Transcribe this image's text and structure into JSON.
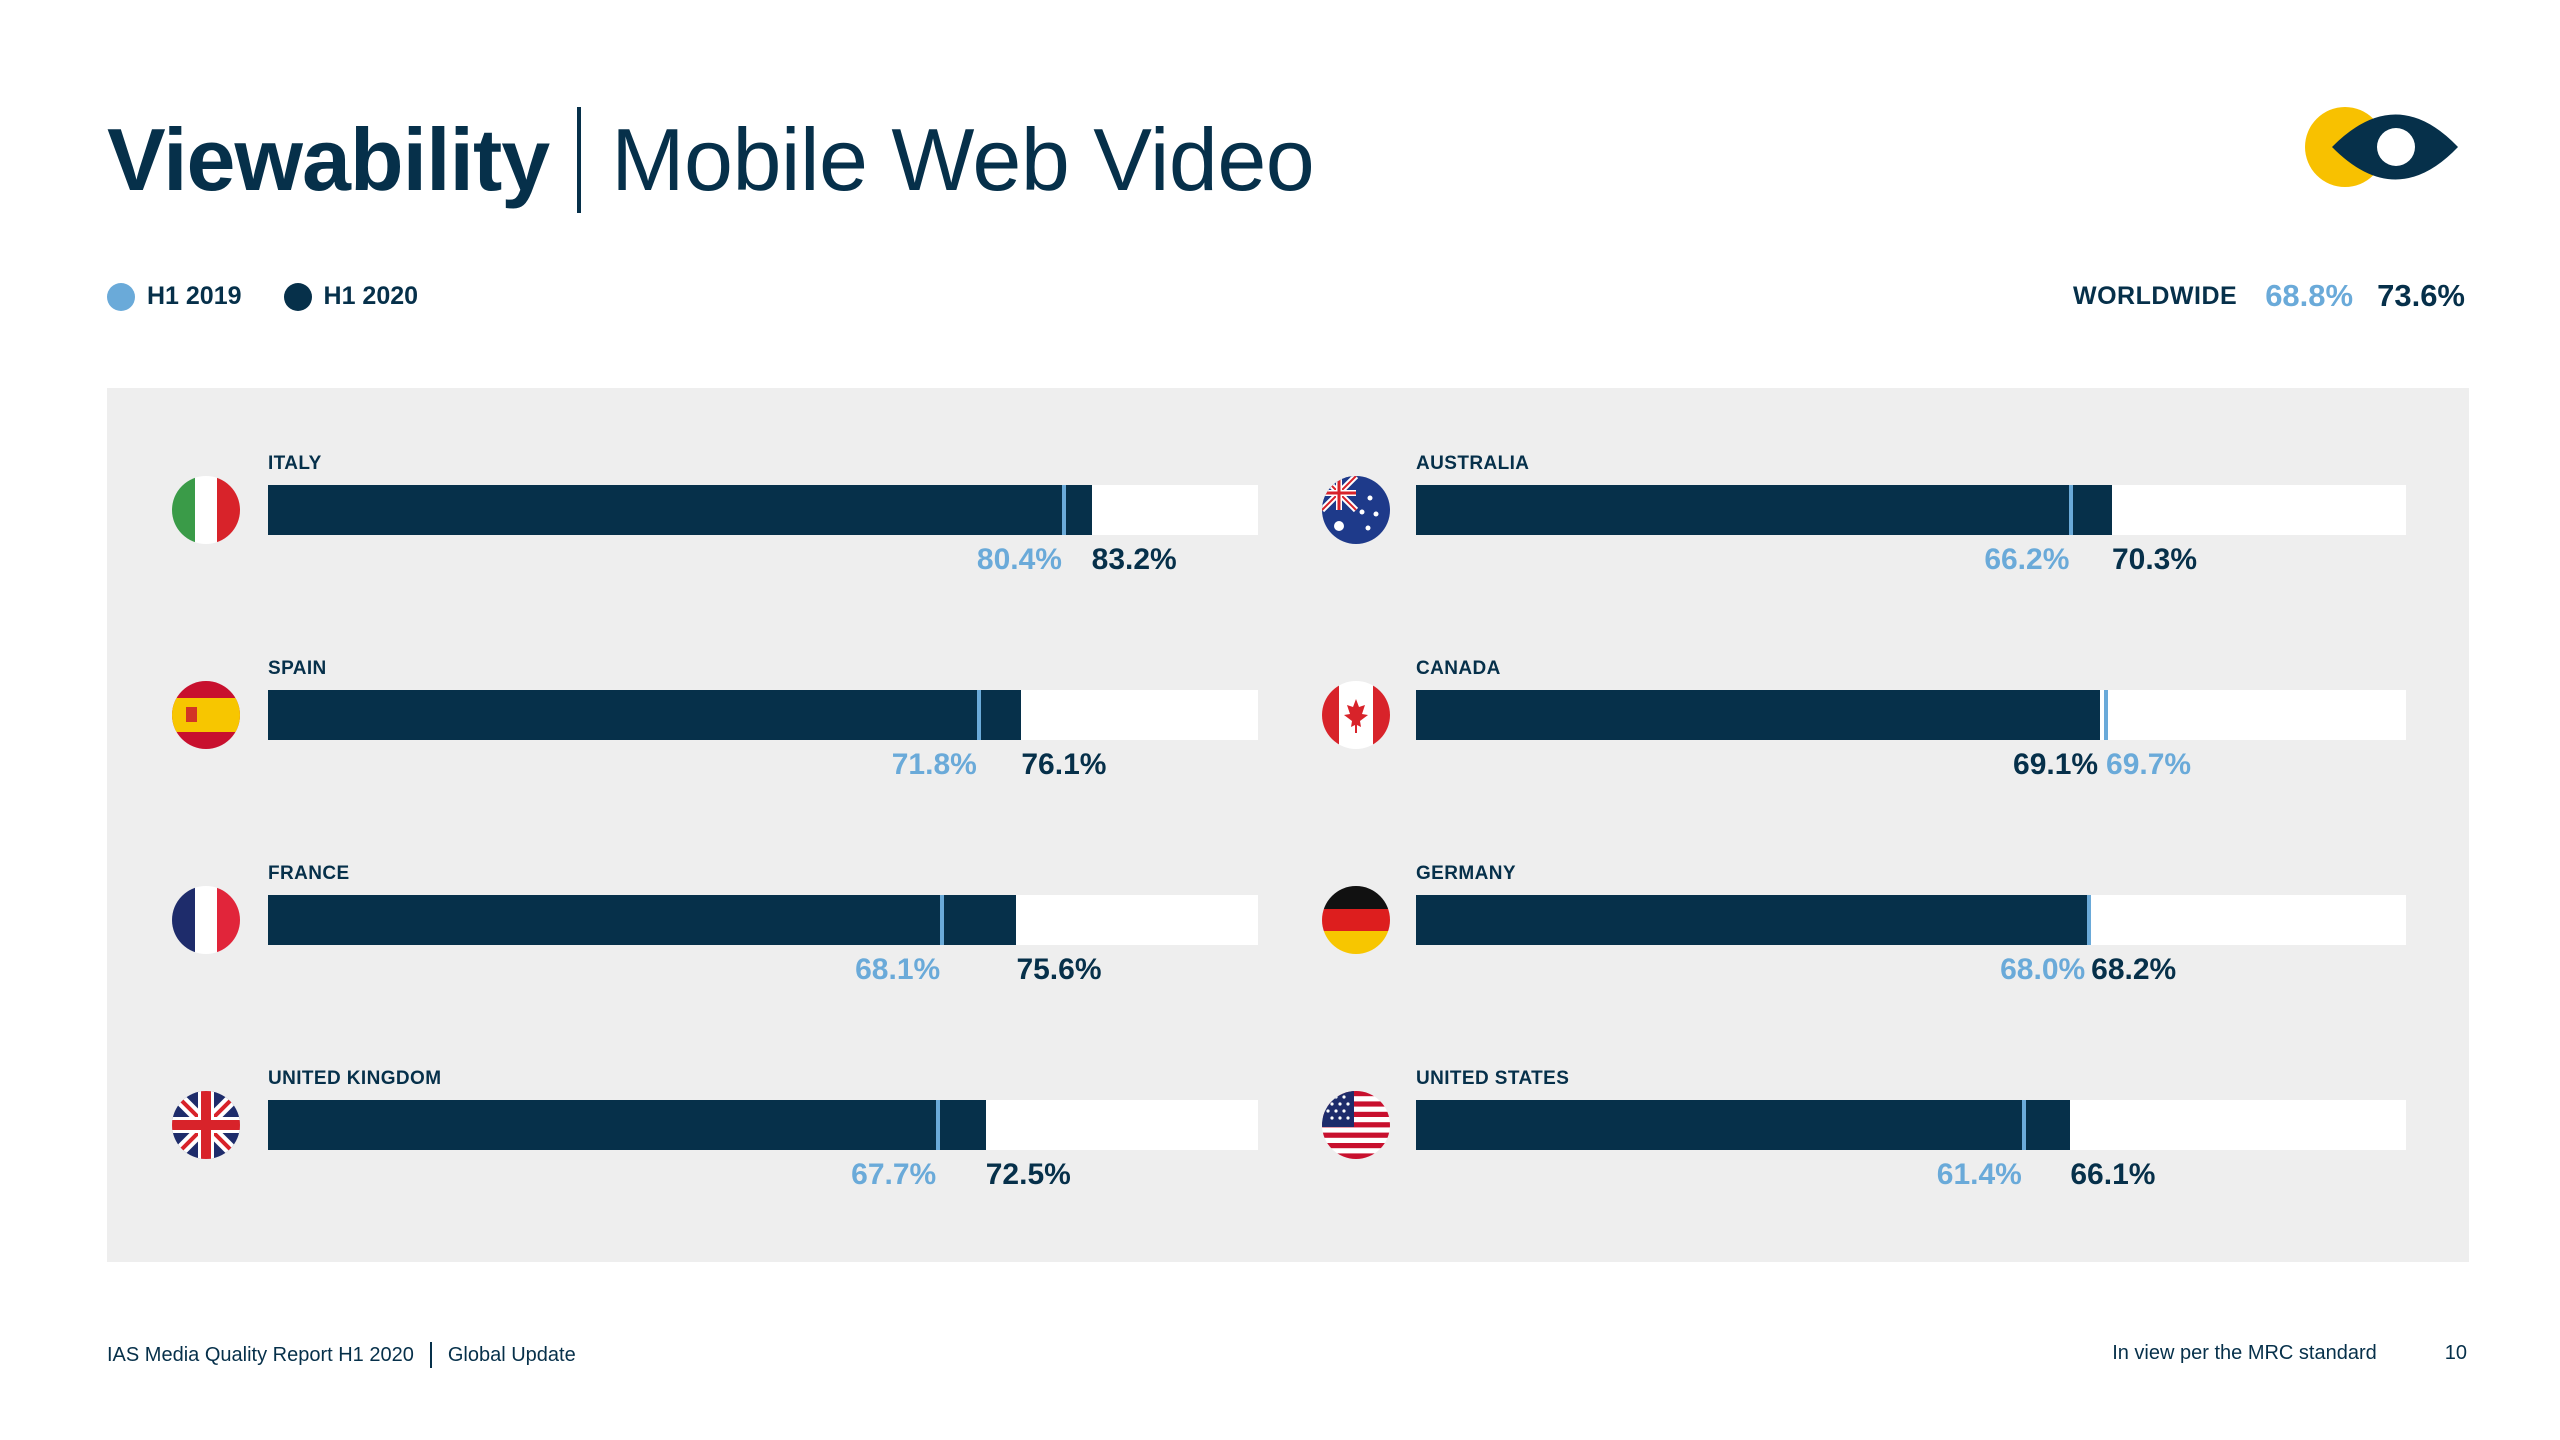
{
  "header": {
    "title_bold": "Viewability",
    "title_light": "Mobile Web Video"
  },
  "legend": [
    {
      "label": "H1 2019",
      "color": "#6aaad9"
    },
    {
      "label": "H1 2020",
      "color": "#06304a"
    }
  ],
  "worldwide": {
    "label": "WORLDWIDE",
    "h1_2019": "68.8%",
    "h1_2020": "73.6%"
  },
  "colors": {
    "h1_2019": "#6aaad9",
    "h1_2020": "#06304a",
    "track": "#ffffff",
    "panel": "#eeeeee"
  },
  "chart_data": {
    "type": "bar",
    "orientation": "horizontal",
    "xlim": [
      0,
      100
    ],
    "unit": "%",
    "categories": [
      "ITALY",
      "SPAIN",
      "FRANCE",
      "UNITED KINGDOM",
      "AUSTRALIA",
      "CANADA",
      "GERMANY",
      "UNITED STATES"
    ],
    "flags": [
      "italy-flag-icon",
      "spain-flag-icon",
      "france-flag-icon",
      "united-kingdom-flag-icon",
      "australia-flag-icon",
      "canada-flag-icon",
      "germany-flag-icon",
      "united-states-flag-icon"
    ],
    "series": [
      {
        "name": "H1 2019",
        "values": [
          80.4,
          71.8,
          68.1,
          67.7,
          66.2,
          69.7,
          68.0,
          61.4
        ]
      },
      {
        "name": "H1 2020",
        "values": [
          83.2,
          76.1,
          75.6,
          72.5,
          70.3,
          69.1,
          68.2,
          66.1
        ]
      }
    ],
    "labels_2019": [
      "80.4%",
      "71.8%",
      "68.1%",
      "67.7%",
      "66.2%",
      "69.7%",
      "68.0%",
      "61.4%"
    ],
    "labels_2020": [
      "83.2%",
      "76.1%",
      "75.6%",
      "72.5%",
      "70.3%",
      "69.1%",
      "68.2%",
      "66.1%"
    ]
  },
  "footer": {
    "report": "IAS Media Quality Report H1 2020",
    "section": "Global Update",
    "note": "In view per the MRC standard",
    "page": "10"
  }
}
